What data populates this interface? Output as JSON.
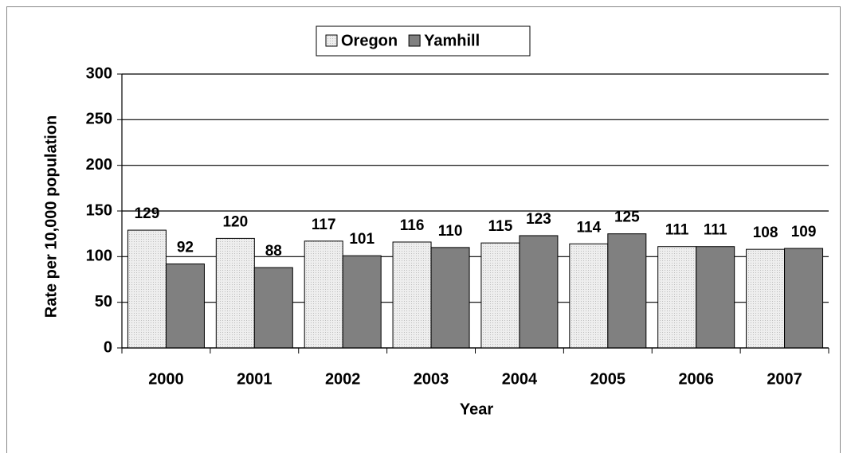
{
  "chart_data": {
    "type": "bar",
    "x_label": "Year",
    "y_label": "Rate per 10,000 population",
    "categories": [
      "2000",
      "2001",
      "2002",
      "2003",
      "2004",
      "2005",
      "2006",
      "2007"
    ],
    "series": [
      {
        "name": "Oregon",
        "color": "#e4e4e4",
        "values": [
          129,
          120,
          117,
          116,
          115,
          114,
          111,
          108
        ]
      },
      {
        "name": "Yamhill",
        "color": "#808080",
        "values": [
          92,
          88,
          101,
          110,
          123,
          125,
          111,
          109
        ]
      }
    ],
    "ylim": [
      0,
      300
    ],
    "yticks": [
      0,
      50,
      100,
      150,
      200,
      250,
      300
    ],
    "grid": true,
    "legend": "top"
  }
}
